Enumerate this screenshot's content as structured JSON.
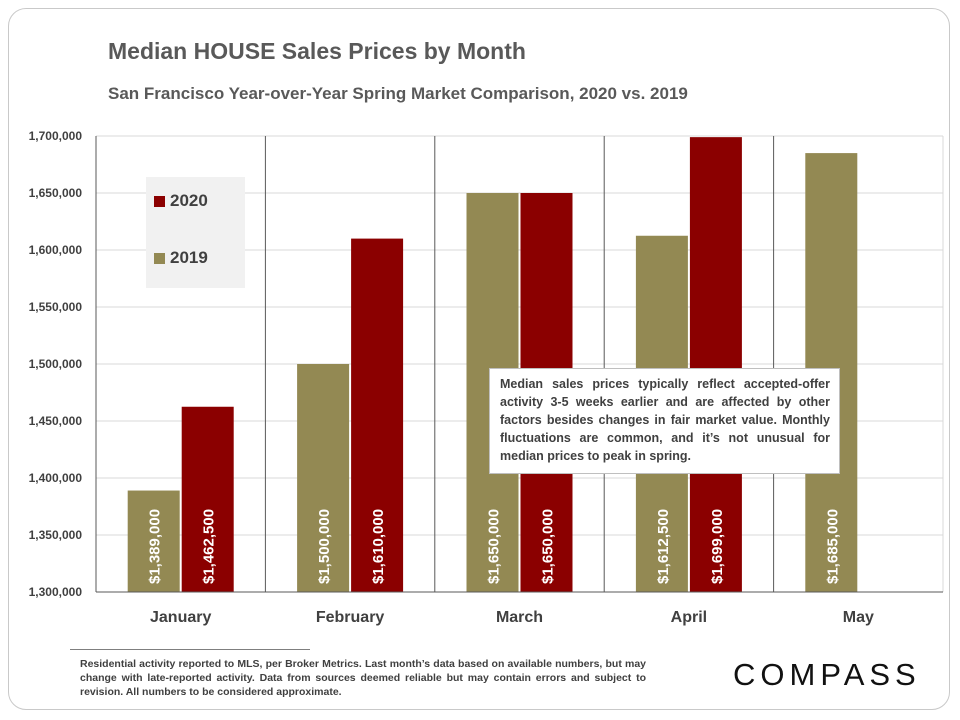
{
  "title": "Median HOUSE Sales Prices by Month",
  "subtitle": "San Francisco Year-over-Year Spring Market Comparison,  2020 vs. 2019",
  "note": "Median sales prices typically reflect accepted-offer activity 3-5 weeks earlier and are affected by other factors besides changes in fair market value. Monthly fluctuations are common, and it’s not unusual for median prices to peak in spring.",
  "footer": "Residential activity reported to MLS, per Broker Metrics. Last month’s data based on available numbers, but may change with late-reported activity. Data from sources deemed reliable but may contain errors and subject to revision. All numbers to be considered approximate.",
  "logo": "COMPASS",
  "colors": {
    "s2019": "#938953",
    "s2020": "#8b0000"
  },
  "chart_data": {
    "type": "bar",
    "title": "Median HOUSE Sales Prices by Month",
    "subtitle": "San Francisco Year-over-Year Spring Market Comparison,  2020 vs. 2019",
    "categories": [
      "January",
      "February",
      "March",
      "April",
      "May"
    ],
    "series": [
      {
        "name": "2019",
        "color": "#938953",
        "values": [
          1389000,
          1500000,
          1650000,
          1612500,
          1685000
        ],
        "labels": [
          "$1,389,000",
          "$1,500,000",
          "$1,650,000",
          "$1,612,500",
          "$1,685,000"
        ]
      },
      {
        "name": "2020",
        "color": "#8b0000",
        "values": [
          1462500,
          1610000,
          1650000,
          1699000,
          null
        ],
        "labels": [
          "$1,462,500",
          "$1,610,000",
          "$1,650,000",
          "$1,699,000",
          ""
        ]
      }
    ],
    "ylim": [
      1300000,
      1700000
    ],
    "yticks": [
      1300000,
      1350000,
      1400000,
      1450000,
      1500000,
      1550000,
      1600000,
      1650000,
      1700000
    ],
    "ytick_labels": [
      "1,300,000",
      "1,350,000",
      "1,400,000",
      "1,450,000",
      "1,500,000",
      "1,550,000",
      "1,600,000",
      "1,650,000",
      "1,700,000"
    ],
    "legend": {
      "placement": "top-left",
      "entries": [
        "2020",
        "2019"
      ]
    },
    "grid": true
  }
}
